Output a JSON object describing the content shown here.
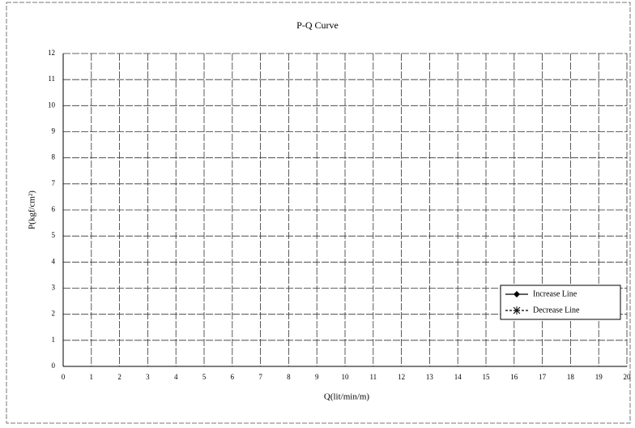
{
  "chart_data": {
    "type": "line",
    "title": "P-Q Curve",
    "x_label": "Q(lit/min/m)",
    "y_label": "P(kgf/cm²)",
    "xlim": [
      0,
      20
    ],
    "xticks": [
      0,
      1,
      2,
      3,
      4,
      5,
      6,
      7,
      8,
      9,
      10,
      11,
      12,
      13,
      14,
      15,
      16,
      17,
      18,
      19,
      20
    ],
    "ylim": [
      0,
      12
    ],
    "yticks": [
      0,
      1,
      2,
      3,
      4,
      5,
      6,
      7,
      8,
      9,
      10,
      11,
      12
    ],
    "grid": true,
    "legend": "lower-right",
    "x": [],
    "series": [
      {
        "name": "Increase Line",
        "color": "#000000",
        "marker": "diamond",
        "values": []
      },
      {
        "name": "Decrease Line",
        "color": "#000000",
        "marker": "asterisk",
        "values": []
      }
    ]
  }
}
